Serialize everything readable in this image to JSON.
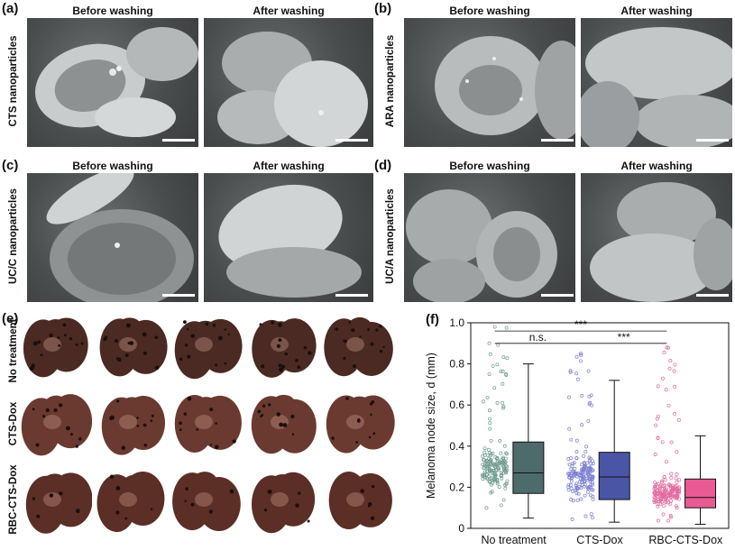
{
  "panels": {
    "a": {
      "label": "(a)",
      "row_label": "CTS nanoparticles",
      "before": "Before washing",
      "after": "After washing"
    },
    "b": {
      "label": "(b)",
      "row_label": "ARA nanoparticles",
      "before": "Before washing",
      "after": "After washing"
    },
    "c": {
      "label": "(c)",
      "row_label": "UC/C nanoparticles",
      "before": "Before washing",
      "after": "After washing"
    },
    "d": {
      "label": "(d)",
      "row_label": "UC/A nanoparticles",
      "before": "Before washing",
      "after": "After washing"
    },
    "e": {
      "label": "(e)",
      "rows": [
        "No treatment",
        "CTS-Dox",
        "RBC-CTS-Dox"
      ]
    },
    "f": {
      "label": "(f)"
    }
  },
  "colors": {
    "sem_bg": "#4a4d4e",
    "cell": "#bfc3c4",
    "lung": "#5a2f24",
    "no_treatment": "#4d6b6b",
    "cts_dox": "#4a55a6",
    "rbc_cts_dox": "#e85a92"
  },
  "chart_data": {
    "type": "box",
    "ylabel": "Melanoma node size, d (mm)",
    "ylim": [
      0,
      1.0
    ],
    "yticks": [
      "0",
      "0.2",
      "0.4",
      "0.6",
      "0.8",
      "1.0"
    ],
    "categories": [
      "No treatment",
      "CTS-Dox",
      "RBC-CTS-Dox"
    ],
    "boxes": [
      {
        "min": 0.05,
        "q1": 0.17,
        "median": 0.27,
        "q3": 0.42,
        "max": 0.8,
        "point_max": 0.98,
        "color": "#4d6b6b",
        "point_color": "#6f9c8f"
      },
      {
        "min": 0.03,
        "q1": 0.14,
        "median": 0.25,
        "q3": 0.37,
        "max": 0.72,
        "point_max": 0.85,
        "color": "#4a55a6",
        "point_color": "#7b7fd0"
      },
      {
        "min": 0.02,
        "q1": 0.1,
        "median": 0.15,
        "q3": 0.24,
        "max": 0.45,
        "point_max": 0.88,
        "color": "#e85a92",
        "point_color": "#e36aa0"
      }
    ],
    "annotations": [
      {
        "text": "n.s.",
        "from": 0,
        "to": 1,
        "y": 0.9
      },
      {
        "text": "***",
        "from": 0,
        "to": 2,
        "y": 0.96
      },
      {
        "text": "***",
        "from": 1,
        "to": 2,
        "y": 0.9
      }
    ]
  }
}
